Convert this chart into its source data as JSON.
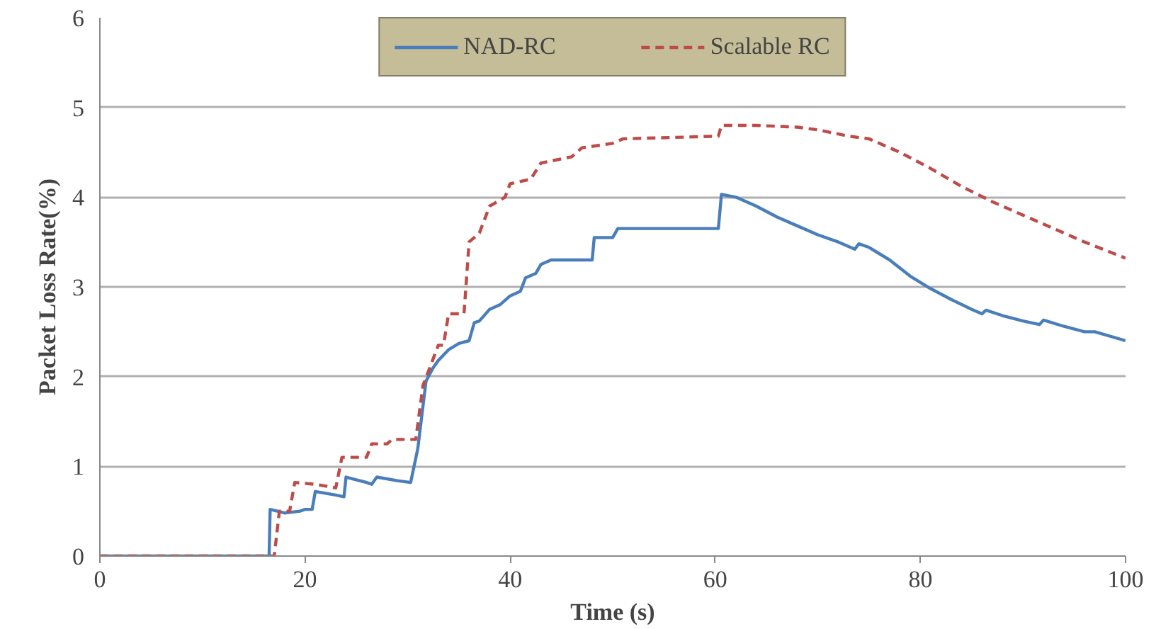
{
  "chart_data": {
    "type": "line",
    "xlabel": "Time (s)",
    "ylabel": "Packet Loss Rate(%)",
    "xlim": [
      0,
      100
    ],
    "ylim": [
      0,
      6
    ],
    "xticks": [
      0,
      20,
      40,
      60,
      80,
      100
    ],
    "yticks": [
      0,
      1,
      2,
      3,
      4,
      5,
      6
    ],
    "grid": "y",
    "legend": "top",
    "marker": "none",
    "series": [
      {
        "name": "NAD-RC",
        "color": "#4a7ebb",
        "line_style": "solid",
        "x": [
          0,
          16.5,
          16.6,
          18,
          19.5,
          20,
          20.7,
          21,
          23,
          23.8,
          24,
          26,
          26.5,
          27,
          29,
          30.3,
          31,
          31.8,
          32.5,
          33,
          34,
          35,
          36,
          36.5,
          37,
          38,
          39,
          40,
          41,
          41.5,
          42.5,
          43,
          44,
          48,
          48.2,
          50,
          50.5,
          60.3,
          60.6,
          62,
          64,
          66,
          68,
          70,
          72,
          73.6,
          74,
          75,
          77,
          79,
          81,
          83,
          85,
          86,
          86.4,
          88,
          90,
          91.6,
          92,
          94,
          96,
          97,
          100
        ],
        "values": [
          0,
          0,
          0.52,
          0.48,
          0.5,
          0.52,
          0.52,
          0.72,
          0.68,
          0.66,
          0.88,
          0.82,
          0.8,
          0.88,
          0.84,
          0.82,
          1.2,
          1.95,
          2.1,
          2.18,
          2.3,
          2.37,
          2.4,
          2.6,
          2.62,
          2.75,
          2.8,
          2.9,
          2.95,
          3.1,
          3.15,
          3.25,
          3.3,
          3.3,
          3.55,
          3.55,
          3.65,
          3.65,
          4.03,
          4.0,
          3.9,
          3.78,
          3.68,
          3.58,
          3.5,
          3.42,
          3.48,
          3.44,
          3.3,
          3.12,
          2.98,
          2.86,
          2.75,
          2.7,
          2.74,
          2.68,
          2.62,
          2.58,
          2.63,
          2.56,
          2.5,
          2.5,
          2.4
        ]
      },
      {
        "name": "Scalable RC",
        "color": "#be4b48",
        "line_style": "dashed",
        "x": [
          0,
          17,
          17.5,
          18.5,
          19,
          21,
          23,
          23.6,
          26,
          26.5,
          28,
          28.5,
          30.8,
          31.5,
          33,
          33.5,
          34,
          35.5,
          36,
          37,
          38,
          39.5,
          40,
          42,
          43,
          46,
          47,
          50,
          51,
          60.3,
          60.6,
          64,
          68,
          70,
          73,
          75,
          78,
          81,
          84,
          87,
          90,
          93,
          96,
          100
        ],
        "values": [
          0,
          0,
          0.5,
          0.5,
          0.82,
          0.8,
          0.76,
          1.1,
          1.1,
          1.25,
          1.25,
          1.3,
          1.3,
          1.9,
          2.35,
          2.35,
          2.7,
          2.7,
          3.5,
          3.6,
          3.9,
          4.0,
          4.15,
          4.2,
          4.38,
          4.45,
          4.55,
          4.6,
          4.65,
          4.68,
          4.8,
          4.8,
          4.78,
          4.75,
          4.68,
          4.65,
          4.5,
          4.32,
          4.12,
          3.95,
          3.8,
          3.65,
          3.5,
          3.32
        ]
      }
    ]
  }
}
